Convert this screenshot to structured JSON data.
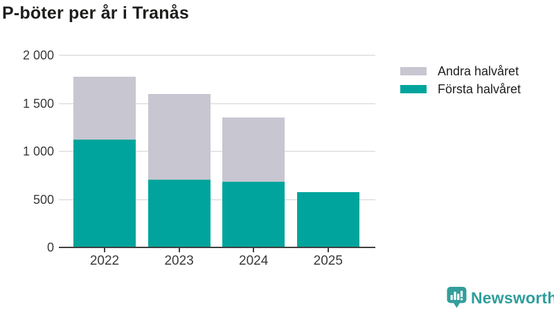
{
  "title": "P-böter per år i Tranås",
  "brand": {
    "name": "Newsworthy",
    "color": "#2F9E9C"
  },
  "colors": {
    "first_half": "#00A49C",
    "second_half": "#C7C6D1",
    "grid": "#E6E6EA",
    "axis": "#3F3F3F",
    "tick_text": "#3A3A3A",
    "title_text": "#1D1D1B"
  },
  "legend": [
    {
      "key": "andra-halvaret",
      "label": "Andra halvåret",
      "color": "#C7C6D1"
    },
    {
      "key": "forsta-halvaret",
      "label": "Första halvåret",
      "color": "#00A49C"
    }
  ],
  "chart_data": {
    "type": "bar",
    "stacked": true,
    "title": "P-böter per år i Tranås",
    "categories": [
      "2022",
      "2023",
      "2024",
      "2025"
    ],
    "series": [
      {
        "key": "forsta-halvaret",
        "name": "Första halvåret",
        "color": "#00A49C",
        "values": [
          1125,
          705,
          685,
          575
        ]
      },
      {
        "key": "andra-halvaret",
        "name": "Andra halvåret",
        "color": "#C7C6D1",
        "values": [
          650,
          895,
          670,
          0
        ]
      }
    ],
    "totals": [
      1775,
      1600,
      1355,
      575
    ],
    "xlabel": "",
    "ylabel": "",
    "ylim": [
      0,
      2000
    ],
    "yticks": [
      0,
      500,
      1000,
      1500,
      2000
    ],
    "ytick_labels": [
      "0",
      "500",
      "1 000",
      "1 500",
      "2 000"
    ],
    "grid": true,
    "legend_position": "top-right"
  }
}
